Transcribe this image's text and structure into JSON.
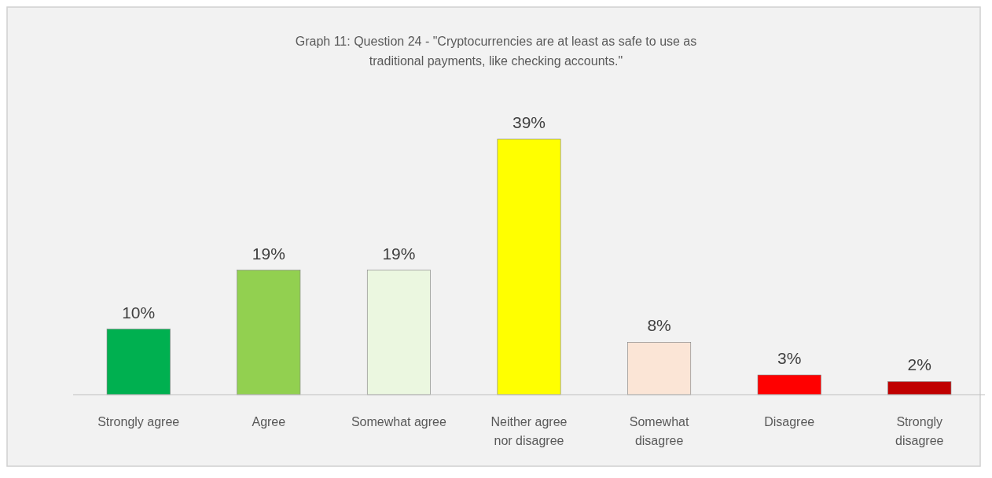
{
  "chart_data": {
    "type": "bar",
    "title": "Graph 11: Question 24 - \"Cryptocurrencies are at least as safe to use as traditional payments, like checking accounts.\"",
    "categories": [
      "Strongly agree",
      "Agree",
      "Somewhat agree",
      "Neither agree nor disagree",
      "Somewhat disagree",
      "Disagree",
      "Strongly disagree"
    ],
    "values": [
      10,
      19,
      19,
      39,
      8,
      3,
      2
    ],
    "value_labels": [
      "10%",
      "19%",
      "19%",
      "39%",
      "8%",
      "3%",
      "2%"
    ],
    "colors": [
      "#00b050",
      "#92d050",
      "#ebf7e0",
      "#ffff00",
      "#fbe5d6",
      "#ff0000",
      "#c00000"
    ]
  }
}
